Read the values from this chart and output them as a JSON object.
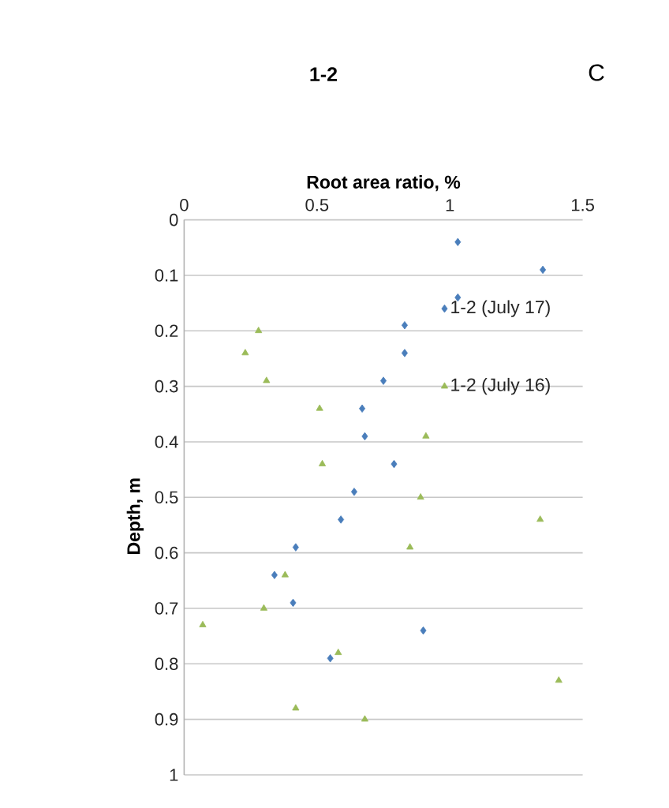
{
  "chart_data": {
    "type": "scatter",
    "title": "1-2",
    "xlabel": "Root area ratio, %",
    "ylabel": "Depth, m",
    "annotations": [
      "C"
    ],
    "xlim": [
      0,
      1.5
    ],
    "xticks": [
      0,
      0.5,
      1,
      1.5
    ],
    "ylim": [
      1,
      0
    ],
    "yticks": [
      0,
      0.1,
      0.2,
      0.3,
      0.4,
      0.5,
      0.6,
      0.7,
      0.8,
      0.9,
      1
    ],
    "grid": "y",
    "series": [
      {
        "name": "1-2 (July 17)",
        "color": "#4a7ebb",
        "marker": "diamond",
        "x": [
          1.03,
          1.35,
          1.03,
          0.83,
          0.83,
          0.75,
          0.67,
          0.68,
          0.79,
          0.64,
          0.59,
          0.42,
          0.34,
          0.41,
          0.9,
          0.55,
          0.98
        ],
        "values": [
          0.04,
          0.09,
          0.14,
          0.19,
          0.24,
          0.29,
          0.34,
          0.39,
          0.44,
          0.49,
          0.54,
          0.59,
          0.64,
          0.69,
          0.74,
          0.79,
          0.16
        ]
      },
      {
        "name": "1-2 (July 16)",
        "color": "#9bbb59",
        "marker": "triangle",
        "x": [
          0.28,
          0.23,
          0.31,
          0.51,
          0.91,
          0.52,
          0.89,
          1.34,
          0.85,
          0.38,
          0.3,
          0.07,
          0.58,
          1.41,
          0.42,
          0.68,
          0.98
        ],
        "values": [
          0.2,
          0.24,
          0.29,
          0.34,
          0.39,
          0.44,
          0.5,
          0.54,
          0.59,
          0.64,
          0.7,
          0.73,
          0.78,
          0.83,
          0.88,
          0.9,
          0.3
        ]
      }
    ]
  }
}
